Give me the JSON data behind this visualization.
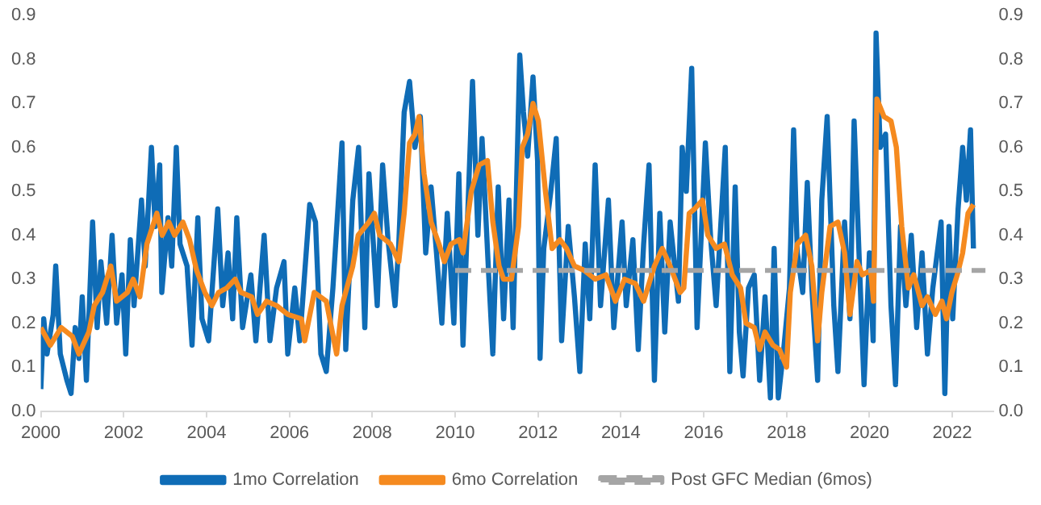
{
  "chart_data": {
    "type": "line",
    "legend": "bottom",
    "grid": false,
    "xlim": [
      2000,
      2023
    ],
    "xticks": [
      2000,
      2002,
      2004,
      2006,
      2008,
      2010,
      2012,
      2014,
      2016,
      2018,
      2020,
      2022
    ],
    "ylim": [
      0,
      0.9
    ],
    "yticks": [
      {
        "value": 0,
        "label": "0.0"
      },
      0.1,
      0.2,
      0.3,
      0.4,
      0.5,
      0.6,
      0.7,
      0.8,
      0.9
    ],
    "y2lim": [
      0,
      0.9
    ],
    "y2ticks": [
      {
        "value": 0,
        "label": "0.0"
      },
      0.1,
      0.2,
      0.3,
      0.4,
      0.5,
      0.6,
      0.7,
      0.8,
      0.9
    ],
    "series": [
      {
        "name": "1mo Correlation",
        "color": "#0f6cb6",
        "x": [
          2000.0,
          2000.07,
          2000.15,
          2000.3,
          2000.36,
          2000.47,
          2000.63,
          2000.73,
          2000.83,
          2000.92,
          2001.0,
          2001.1,
          2001.25,
          2001.36,
          2001.45,
          2001.59,
          2001.72,
          2001.83,
          2001.96,
          2002.05,
          2002.16,
          2002.25,
          2002.43,
          2002.52,
          2002.67,
          2002.76,
          2002.87,
          2002.92,
          2003.07,
          2003.16,
          2003.27,
          2003.36,
          2003.53,
          2003.65,
          2003.79,
          2003.89,
          2004.05,
          2004.27,
          2004.39,
          2004.52,
          2004.63,
          2004.73,
          2004.87,
          2005.07,
          2005.19,
          2005.39,
          2005.53,
          2005.69,
          2005.87,
          2005.96,
          2006.13,
          2006.25,
          2006.49,
          2006.63,
          2006.76,
          2006.89,
          2007.05,
          2007.27,
          2007.36,
          2007.53,
          2007.67,
          2007.82,
          2007.92,
          2008.12,
          2008.25,
          2008.38,
          2008.55,
          2008.64,
          2008.77,
          2008.9,
          2009.03,
          2009.16,
          2009.29,
          2009.42,
          2009.55,
          2009.68,
          2009.81,
          2009.97,
          2010.09,
          2010.19,
          2010.42,
          2010.55,
          2010.65,
          2010.81,
          2010.91,
          2011.04,
          2011.17,
          2011.3,
          2011.4,
          2011.56,
          2011.65,
          2011.75,
          2011.88,
          2011.99,
          2012.05,
          2012.14,
          2012.31,
          2012.44,
          2012.57,
          2012.73,
          2012.88,
          2013.01,
          2013.14,
          2013.25,
          2013.38,
          2013.51,
          2013.7,
          2013.83,
          2014.03,
          2014.13,
          2014.29,
          2014.42,
          2014.55,
          2014.68,
          2014.81,
          2014.94,
          2015.06,
          2015.19,
          2015.39,
          2015.48,
          2015.58,
          2015.71,
          2015.84,
          2016.04,
          2016.17,
          2016.3,
          2016.52,
          2016.63,
          2016.76,
          2016.86,
          2016.95,
          2017.08,
          2017.22,
          2017.35,
          2017.48,
          2017.61,
          2017.7,
          2017.8,
          2017.93,
          2018.07,
          2018.17,
          2018.26,
          2018.39,
          2018.5,
          2018.61,
          2018.75,
          2018.85,
          2018.98,
          2019.14,
          2019.24,
          2019.4,
          2019.53,
          2019.63,
          2019.76,
          2019.87,
          2020.0,
          2020.09,
          2020.16,
          2020.26,
          2020.39,
          2020.52,
          2020.63,
          2020.75,
          2020.88,
          2021.01,
          2021.14,
          2021.27,
          2021.4,
          2021.53,
          2021.73,
          2021.82,
          2021.92,
          2022.01,
          2022.14,
          2022.25,
          2022.34,
          2022.44,
          2022.51
        ],
        "values": [
          0.05,
          0.21,
          0.13,
          0.22,
          0.33,
          0.13,
          0.07,
          0.04,
          0.19,
          0.12,
          0.26,
          0.07,
          0.43,
          0.19,
          0.34,
          0.2,
          0.4,
          0.2,
          0.31,
          0.13,
          0.39,
          0.24,
          0.48,
          0.33,
          0.6,
          0.42,
          0.56,
          0.27,
          0.44,
          0.33,
          0.6,
          0.38,
          0.33,
          0.15,
          0.44,
          0.21,
          0.16,
          0.46,
          0.24,
          0.36,
          0.21,
          0.44,
          0.19,
          0.31,
          0.16,
          0.4,
          0.16,
          0.28,
          0.34,
          0.13,
          0.28,
          0.16,
          0.47,
          0.43,
          0.13,
          0.09,
          0.28,
          0.61,
          0.14,
          0.48,
          0.6,
          0.19,
          0.54,
          0.24,
          0.56,
          0.39,
          0.24,
          0.38,
          0.68,
          0.75,
          0.6,
          0.67,
          0.36,
          0.51,
          0.36,
          0.2,
          0.45,
          0.2,
          0.54,
          0.15,
          0.75,
          0.4,
          0.62,
          0.31,
          0.13,
          0.51,
          0.21,
          0.48,
          0.19,
          0.81,
          0.68,
          0.58,
          0.76,
          0.57,
          0.12,
          0.37,
          0.5,
          0.62,
          0.16,
          0.42,
          0.26,
          0.09,
          0.38,
          0.21,
          0.56,
          0.24,
          0.48,
          0.19,
          0.43,
          0.24,
          0.39,
          0.14,
          0.38,
          0.56,
          0.07,
          0.45,
          0.18,
          0.43,
          0.25,
          0.6,
          0.5,
          0.78,
          0.19,
          0.61,
          0.39,
          0.24,
          0.6,
          0.09,
          0.51,
          0.18,
          0.08,
          0.28,
          0.31,
          0.07,
          0.26,
          0.03,
          0.37,
          0.03,
          0.14,
          0.28,
          0.64,
          0.36,
          0.27,
          0.52,
          0.28,
          0.07,
          0.48,
          0.67,
          0.24,
          0.09,
          0.43,
          0.21,
          0.66,
          0.33,
          0.06,
          0.36,
          0.16,
          0.86,
          0.6,
          0.63,
          0.24,
          0.06,
          0.42,
          0.24,
          0.4,
          0.19,
          0.36,
          0.13,
          0.28,
          0.43,
          0.04,
          0.42,
          0.21,
          0.46,
          0.6,
          0.48,
          0.64,
          0.37
        ]
      },
      {
        "name": "6mo Correlation",
        "color": "#f58a1f",
        "x": [
          2000.0,
          2000.23,
          2000.49,
          2000.76,
          2000.92,
          2001.16,
          2001.29,
          2001.49,
          2001.69,
          2001.83,
          2002.09,
          2002.23,
          2002.39,
          2002.56,
          2002.8,
          2002.93,
          2003.09,
          2003.23,
          2003.43,
          2003.59,
          2003.76,
          2003.96,
          2004.13,
          2004.29,
          2004.49,
          2004.69,
          2004.83,
          2005.09,
          2005.23,
          2005.45,
          2005.69,
          2005.96,
          2006.29,
          2006.37,
          2006.6,
          2006.89,
          2007.14,
          2007.27,
          2007.53,
          2007.66,
          2007.92,
          2008.05,
          2008.18,
          2008.44,
          2008.64,
          2008.77,
          2008.9,
          2009.03,
          2009.13,
          2009.25,
          2009.42,
          2009.61,
          2009.74,
          2009.9,
          2010.1,
          2010.19,
          2010.39,
          2010.58,
          2010.78,
          2010.91,
          2011.06,
          2011.17,
          2011.36,
          2011.53,
          2011.62,
          2011.75,
          2011.88,
          2012.01,
          2012.18,
          2012.34,
          2012.53,
          2012.69,
          2012.88,
          2013.12,
          2013.38,
          2013.64,
          2013.87,
          2014.09,
          2014.35,
          2014.55,
          2014.81,
          2015.0,
          2015.19,
          2015.43,
          2015.52,
          2015.65,
          2015.78,
          2015.97,
          2016.1,
          2016.3,
          2016.5,
          2016.69,
          2016.89,
          2017.02,
          2017.22,
          2017.35,
          2017.48,
          2017.67,
          2017.83,
          2018.0,
          2018.09,
          2018.26,
          2018.46,
          2018.61,
          2018.75,
          2018.85,
          2019.05,
          2019.24,
          2019.4,
          2019.53,
          2019.7,
          2019.83,
          2020.03,
          2020.1,
          2020.18,
          2020.35,
          2020.52,
          2020.65,
          2020.78,
          2020.94,
          2021.07,
          2021.27,
          2021.4,
          2021.59,
          2021.75,
          2021.86,
          2021.99,
          2022.12,
          2022.25,
          2022.38,
          2022.51
        ],
        "values": [
          0.19,
          0.15,
          0.19,
          0.17,
          0.13,
          0.18,
          0.24,
          0.27,
          0.33,
          0.25,
          0.27,
          0.3,
          0.26,
          0.38,
          0.45,
          0.4,
          0.43,
          0.4,
          0.43,
          0.39,
          0.32,
          0.27,
          0.24,
          0.27,
          0.28,
          0.3,
          0.27,
          0.26,
          0.22,
          0.25,
          0.24,
          0.22,
          0.21,
          0.16,
          0.27,
          0.25,
          0.13,
          0.24,
          0.33,
          0.4,
          0.43,
          0.45,
          0.4,
          0.38,
          0.34,
          0.45,
          0.61,
          0.63,
          0.67,
          0.54,
          0.43,
          0.38,
          0.34,
          0.38,
          0.39,
          0.36,
          0.5,
          0.56,
          0.57,
          0.43,
          0.33,
          0.3,
          0.3,
          0.42,
          0.6,
          0.63,
          0.7,
          0.66,
          0.5,
          0.37,
          0.39,
          0.37,
          0.33,
          0.32,
          0.3,
          0.31,
          0.25,
          0.3,
          0.29,
          0.25,
          0.33,
          0.37,
          0.33,
          0.27,
          0.28,
          0.45,
          0.46,
          0.48,
          0.4,
          0.37,
          0.38,
          0.31,
          0.28,
          0.2,
          0.19,
          0.14,
          0.18,
          0.15,
          0.14,
          0.1,
          0.27,
          0.38,
          0.4,
          0.33,
          0.16,
          0.27,
          0.42,
          0.43,
          0.36,
          0.22,
          0.34,
          0.31,
          0.32,
          0.25,
          0.71,
          0.67,
          0.66,
          0.6,
          0.42,
          0.28,
          0.31,
          0.24,
          0.26,
          0.22,
          0.25,
          0.21,
          0.27,
          0.31,
          0.36,
          0.45,
          0.47
        ]
      },
      {
        "name": "Post GFC Median (6mos)",
        "color": "#a5a5a5",
        "line_style": "dashed",
        "x": [
          2010,
          2022.8
        ],
        "values": [
          0.32,
          0.32
        ]
      }
    ]
  }
}
